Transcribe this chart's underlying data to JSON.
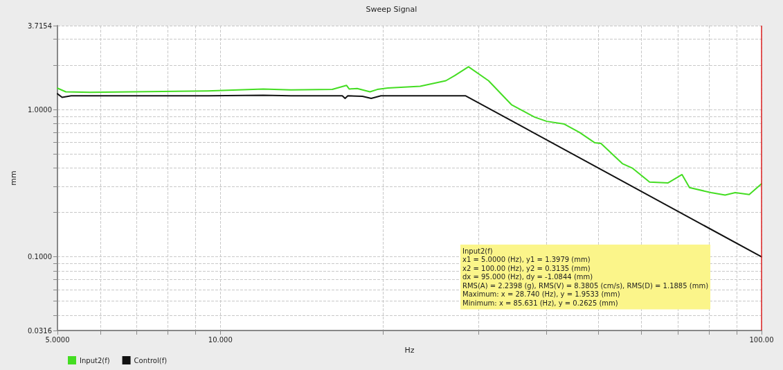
{
  "chart_data": {
    "type": "line",
    "title": "Sweep Signal",
    "xlabel": "Hz",
    "ylabel": "mm",
    "log": "xy",
    "grid": true,
    "legend": "bottom left",
    "marker": "none",
    "line_style": "solid",
    "xlim": [
      5,
      100
    ],
    "xticks": [
      {
        "value": 5,
        "label": "5.0000"
      },
      {
        "value": 6,
        "label": null
      },
      {
        "value": 7,
        "label": null
      },
      {
        "value": 8,
        "label": null
      },
      {
        "value": 9,
        "label": null
      },
      {
        "value": 10,
        "label": "10.000"
      },
      {
        "value": 20,
        "label": null
      },
      {
        "value": 30,
        "label": null
      },
      {
        "value": 40,
        "label": null
      },
      {
        "value": 50,
        "label": null
      },
      {
        "value": 60,
        "label": null
      },
      {
        "value": 70,
        "label": null
      },
      {
        "value": 80,
        "label": null
      },
      {
        "value": 90,
        "label": null
      },
      {
        "value": 100,
        "label": "100.00"
      }
    ],
    "ylim": [
      0.0316,
      3.7154
    ],
    "yticks": [
      {
        "value": 0.0316,
        "label": "0.0316"
      },
      {
        "value": 0.04,
        "label": null
      },
      {
        "value": 0.05,
        "label": null
      },
      {
        "value": 0.06,
        "label": null
      },
      {
        "value": 0.07,
        "label": null
      },
      {
        "value": 0.08,
        "label": null
      },
      {
        "value": 0.09,
        "label": null
      },
      {
        "value": 0.1,
        "label": "0.1000"
      },
      {
        "value": 0.2,
        "label": null
      },
      {
        "value": 0.3,
        "label": null
      },
      {
        "value": 0.4,
        "label": null
      },
      {
        "value": 0.5,
        "label": null
      },
      {
        "value": 0.6,
        "label": null
      },
      {
        "value": 0.7,
        "label": null
      },
      {
        "value": 0.8,
        "label": null
      },
      {
        "value": 0.9,
        "label": null
      },
      {
        "value": 1,
        "label": "1.0000"
      },
      {
        "value": 2,
        "label": null
      },
      {
        "value": 3,
        "label": null
      },
      {
        "value": 3.7154,
        "label": "3.7154"
      }
    ],
    "series": [
      {
        "name": "Input2(f)",
        "color": "#44dd22",
        "x": [
          5.0,
          5.18,
          5.74,
          9.48,
          12.0,
          13.5,
          16.1,
          17.1,
          17.3,
          17.9,
          18.9,
          19.5,
          20.4,
          23.4,
          26.1,
          27.1,
          28.74,
          31.3,
          34.5,
          38.1,
          40.1,
          43.2,
          46.1,
          49.2,
          50.5,
          55.3,
          57.8,
          62.1,
          67.2,
          71.3,
          73.6,
          80.7,
          85.631,
          89.4,
          94.9,
          100
        ],
        "values": [
          1.3979,
          1.32,
          1.31,
          1.34,
          1.38,
          1.36,
          1.37,
          1.46,
          1.38,
          1.39,
          1.32,
          1.37,
          1.4,
          1.44,
          1.57,
          1.7,
          1.9533,
          1.57,
          1.08,
          0.888,
          0.832,
          0.797,
          0.7,
          0.595,
          0.589,
          0.43,
          0.399,
          0.322,
          0.318,
          0.362,
          0.295,
          0.273,
          0.2625,
          0.273,
          0.265,
          0.3135
        ]
      },
      {
        "name": "Control(f)",
        "color": "#111111",
        "x": [
          5.0,
          5.1,
          5.3,
          9.5,
          12.0,
          13.5,
          16.8,
          17.0,
          17.2,
          18.3,
          19.0,
          19.8,
          28.4,
          100
        ],
        "values": [
          1.28,
          1.21,
          1.24,
          1.24,
          1.25,
          1.24,
          1.24,
          1.19,
          1.24,
          1.23,
          1.19,
          1.24,
          1.24,
          0.1
        ]
      }
    ],
    "ref_lines": [
      {
        "axis": "x",
        "value": 100,
        "color": "#dd2222"
      }
    ],
    "annotations": [
      "Input2(f)\nx1 = 5.0000 (Hz), y1 = 1.3979 (mm)\nx2 = 100.00 (Hz), y2 = 0.3135 (mm)\ndx = 95.000 (Hz), dy = -1.0844 (mm)\nRMS(A) = 2.2398 (g), RMS(V) = 8.3805 (cm/s), RMS(D) = 1.1885 (mm)\nMaximum: x = 28.740 (Hz), y = 1.9533 (mm)\nMinimum: x = 85.631 (Hz), y = 0.2625 (mm)"
    ]
  }
}
